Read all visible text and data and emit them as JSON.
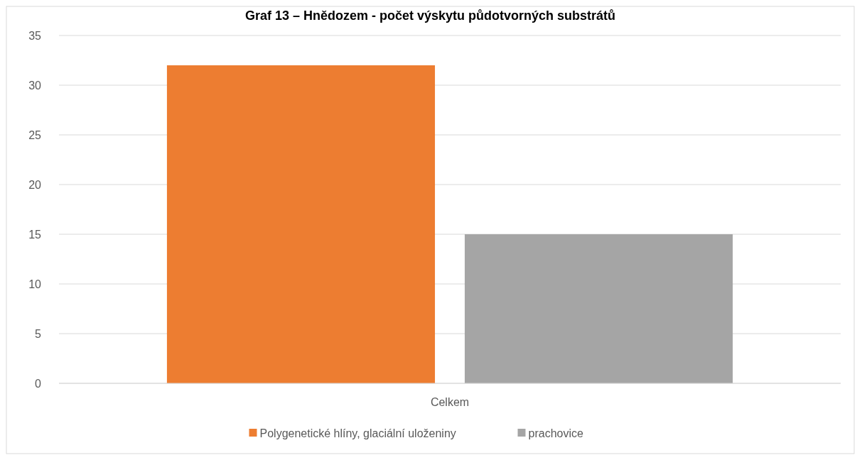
{
  "chart_data": {
    "type": "bar",
    "title": "Graf 13 – Hnědozem - počet výskytu půdotvorných substrátů",
    "categories": [
      "Celkem"
    ],
    "series": [
      {
        "name": "Polygenetické hlíny, glaciální uloženiny",
        "color": "#ed7d31",
        "values": [
          32
        ]
      },
      {
        "name": "prachovice",
        "color": "#a5a5a5",
        "values": [
          15
        ]
      }
    ],
    "ylim": [
      0,
      35
    ],
    "yticks": [
      0,
      5,
      10,
      15,
      20,
      25,
      30,
      35
    ],
    "grid": "y",
    "legend": "bottom"
  }
}
